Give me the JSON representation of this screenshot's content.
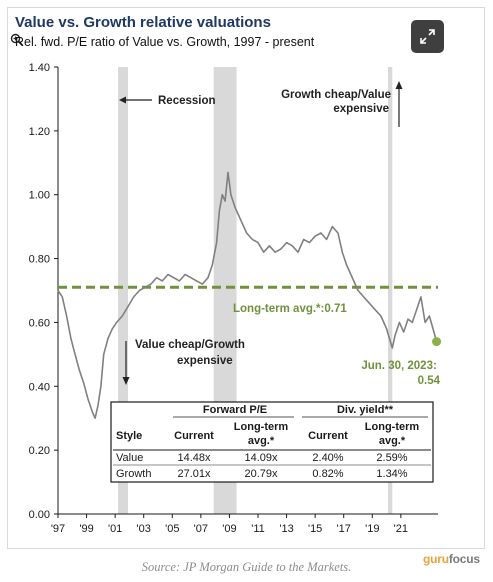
{
  "header": {
    "title": "Value vs. Growth relative valuations",
    "subtitle": "Rel. fwd. P/E ratio of Value vs. Growth, 1997 - present"
  },
  "icons": {
    "zoom": "zoom-in-icon",
    "expand": "expand-icon"
  },
  "colors": {
    "line": "#808080",
    "avg_line": "#70923c",
    "recession": "#d9d9d9",
    "endpoint": "#8cb04a",
    "title": "#1f3864",
    "brand_accent": "#e8a33c"
  },
  "chart_data": {
    "type": "line",
    "title": "Value vs. Growth relative valuations",
    "subtitle": "Rel. fwd. P/E ratio of Value vs. Growth, 1997 - present",
    "xlim": [
      1997.0,
      2023.6
    ],
    "ylim": [
      0.0,
      1.4
    ],
    "yticks": [
      "0.00",
      "0.20",
      "0.40",
      "0.60",
      "0.80",
      "1.00",
      "1.20",
      "1.40"
    ],
    "ytick_values": [
      0.0,
      0.2,
      0.4,
      0.6,
      0.8,
      1.0,
      1.2,
      1.4
    ],
    "xticks": [
      "'97",
      "'99",
      "'01",
      "'03",
      "'05",
      "'07",
      "'09",
      "'11",
      "'13",
      "'15",
      "'17",
      "'19",
      "'21"
    ],
    "xtick_values": [
      1997,
      1999,
      2001,
      2003,
      2005,
      2007,
      2009,
      2011,
      2013,
      2015,
      2017,
      2019,
      2021
    ],
    "grid": false,
    "recessions": [
      [
        2001.2,
        2001.9
      ],
      [
        2007.9,
        2009.5
      ],
      [
        2020.1,
        2020.4
      ]
    ],
    "long_term_avg": 0.71,
    "series": [
      {
        "name": "",
        "x": [
          1997.0,
          1997.3,
          1997.6,
          1997.9,
          1998.2,
          1998.5,
          1998.8,
          1999.1,
          1999.4,
          1999.6,
          1999.8,
          2000.0,
          2000.2,
          2000.5,
          2000.8,
          2001.1,
          2001.5,
          2001.9,
          2002.3,
          2002.7,
          2003.1,
          2003.5,
          2003.9,
          2004.3,
          2004.7,
          2005.1,
          2005.5,
          2005.9,
          2006.3,
          2006.7,
          2007.1,
          2007.5,
          2007.8,
          2008.1,
          2008.3,
          2008.5,
          2008.7,
          2008.9,
          2009.1,
          2009.4,
          2009.8,
          2010.2,
          2010.6,
          2011.0,
          2011.4,
          2011.8,
          2012.2,
          2012.6,
          2013.0,
          2013.4,
          2013.8,
          2014.2,
          2014.6,
          2015.0,
          2015.4,
          2015.8,
          2016.2,
          2016.6,
          2016.9,
          2017.2,
          2017.6,
          2018.0,
          2018.4,
          2018.8,
          2019.2,
          2019.6,
          2020.0,
          2020.2,
          2020.4,
          2020.6,
          2020.9,
          2021.2,
          2021.5,
          2021.8,
          2022.1,
          2022.4,
          2022.7,
          2023.0,
          2023.5
        ],
        "values": [
          0.7,
          0.68,
          0.62,
          0.55,
          0.5,
          0.45,
          0.41,
          0.36,
          0.32,
          0.3,
          0.34,
          0.4,
          0.5,
          0.55,
          0.58,
          0.6,
          0.62,
          0.65,
          0.68,
          0.7,
          0.71,
          0.72,
          0.74,
          0.73,
          0.75,
          0.74,
          0.73,
          0.75,
          0.74,
          0.73,
          0.72,
          0.74,
          0.78,
          0.85,
          0.95,
          1.0,
          0.98,
          1.07,
          1.0,
          0.96,
          0.92,
          0.88,
          0.86,
          0.85,
          0.82,
          0.84,
          0.82,
          0.83,
          0.85,
          0.84,
          0.82,
          0.86,
          0.85,
          0.87,
          0.88,
          0.86,
          0.9,
          0.88,
          0.82,
          0.78,
          0.74,
          0.7,
          0.68,
          0.66,
          0.64,
          0.62,
          0.58,
          0.55,
          0.52,
          0.56,
          0.6,
          0.57,
          0.61,
          0.6,
          0.64,
          0.68,
          0.6,
          0.62,
          0.54
        ]
      }
    ],
    "annotations": {
      "recession": "Recession",
      "growth_cheap": "Growth cheap/Value expensive",
      "value_cheap": "Value cheap/Growth expensive",
      "long_term_avg_label": "Long-term avg.*:",
      "long_term_avg_value": "0.71",
      "endpoint_date": "Jun. 30, 2023:",
      "endpoint_value": "0.54"
    },
    "table": {
      "group_headers": [
        "Forward P/E",
        "Div. yield**"
      ],
      "columns": [
        "Style",
        "Current",
        "Long-term avg.*",
        "Current",
        "Long-term avg.*"
      ],
      "rows": [
        [
          "Value",
          "14.48x",
          "14.09x",
          "2.40%",
          "2.59%"
        ],
        [
          "Growth",
          "27.01x",
          "20.79x",
          "0.82%",
          "1.34%"
        ]
      ]
    }
  },
  "footer": {
    "source": "Source: JP Morgan Guide to the Markets.",
    "brand_part1": "guru",
    "brand_part2": "focus"
  }
}
